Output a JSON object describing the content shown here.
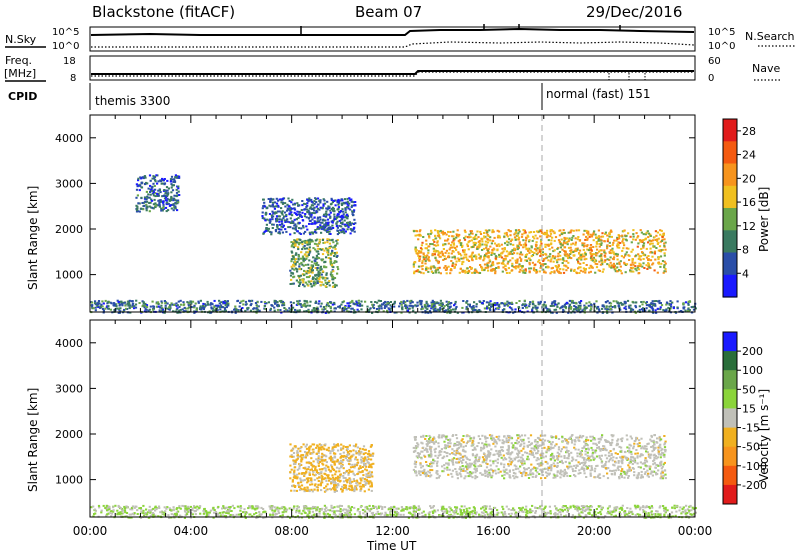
{
  "header": {
    "station": "Blackstone (fitACF)",
    "beam": "Beam 07",
    "date": "29/Dec/2016"
  },
  "top_panels": {
    "nsky_label": "N.Sky",
    "nsky_ticks": [
      "10^5",
      "10^0"
    ],
    "nsearch_label": "N.Search",
    "nsearch_ticks": [
      "10^5",
      "10^0"
    ],
    "freq_label": "Freq.",
    "freq_unit": "[MHz]",
    "freq_ticks": [
      "18",
      "8"
    ],
    "nave_label": "Nave",
    "nave_ticks": [
      "60",
      "0"
    ],
    "cpid_label": "CPID",
    "cpid_segments": [
      {
        "name": "themis 3300",
        "start_hour": 0
      },
      {
        "name": "normal (fast) 151",
        "start_hour": 18
      }
    ]
  },
  "chart_data": [
    {
      "type": "heatmap",
      "title": "",
      "ylabel": "Slant Range [km]",
      "xlabel": "",
      "xlim": [
        0,
        24
      ],
      "ylim": [
        180,
        4500
      ],
      "yticks": [
        "1000",
        "2000",
        "3000",
        "4000"
      ],
      "colorbar": {
        "label": "Power [dB]",
        "ticks": [
          "4",
          "8",
          "12",
          "16",
          "20",
          "24",
          "28"
        ],
        "range": [
          0,
          30
        ],
        "colors": [
          "#1a1aff",
          "#2a4ea8",
          "#3a7a60",
          "#6aa64a",
          "#f0c020",
          "#f7941d",
          "#f45a10",
          "#e11b1b"
        ]
      },
      "regions": [
        {
          "name": "early scatter",
          "t": [
            1.8,
            3.5
          ],
          "r": [
            2400,
            3200
          ],
          "value": 7
        },
        {
          "name": "morning patch",
          "t": [
            6.8,
            10.5
          ],
          "r": [
            1900,
            2700
          ],
          "value": 6
        },
        {
          "name": "pre-noon echoes",
          "t": [
            7.9,
            9.8
          ],
          "r": [
            750,
            1800
          ],
          "value": 12
        },
        {
          "name": "main band",
          "t": [
            12.8,
            22.8
          ],
          "r": [
            1050,
            2000
          ],
          "value": 18
        },
        {
          "name": "low-range clutter",
          "t": [
            0,
            24
          ],
          "r": [
            180,
            450
          ],
          "value": 8
        }
      ]
    },
    {
      "type": "heatmap",
      "title": "",
      "ylabel": "Slant Range [km]",
      "xlabel": "Time UT",
      "xlim": [
        0,
        24
      ],
      "ylim": [
        180,
        4500
      ],
      "xticks": [
        "00:00",
        "04:00",
        "08:00",
        "12:00",
        "16:00",
        "20:00",
        "00:00"
      ],
      "yticks": [
        "1000",
        "2000",
        "3000",
        "4000"
      ],
      "colorbar": {
        "label": "Velocity [m s⁻¹]",
        "ticks": [
          "200",
          "100",
          "50",
          "15",
          "-15",
          "-50",
          "-100",
          "-200"
        ],
        "range": [
          -250,
          250
        ],
        "colors": [
          "#1a1aff",
          "#2a6e3a",
          "#6aa64a",
          "#8bd43a",
          "#c0c0b8",
          "#f0b020",
          "#f7941d",
          "#f45a10",
          "#e11b1b"
        ]
      },
      "regions": [
        {
          "name": "pre-noon echoes",
          "t": [
            7.9,
            11.2
          ],
          "r": [
            750,
            1800
          ],
          "value": -40
        },
        {
          "name": "main band",
          "t": [
            12.8,
            22.8
          ],
          "r": [
            1050,
            2000
          ],
          "value": 0
        },
        {
          "name": "low-range clutter",
          "t": [
            0,
            24
          ],
          "r": [
            180,
            450
          ],
          "value": 30
        }
      ]
    }
  ]
}
